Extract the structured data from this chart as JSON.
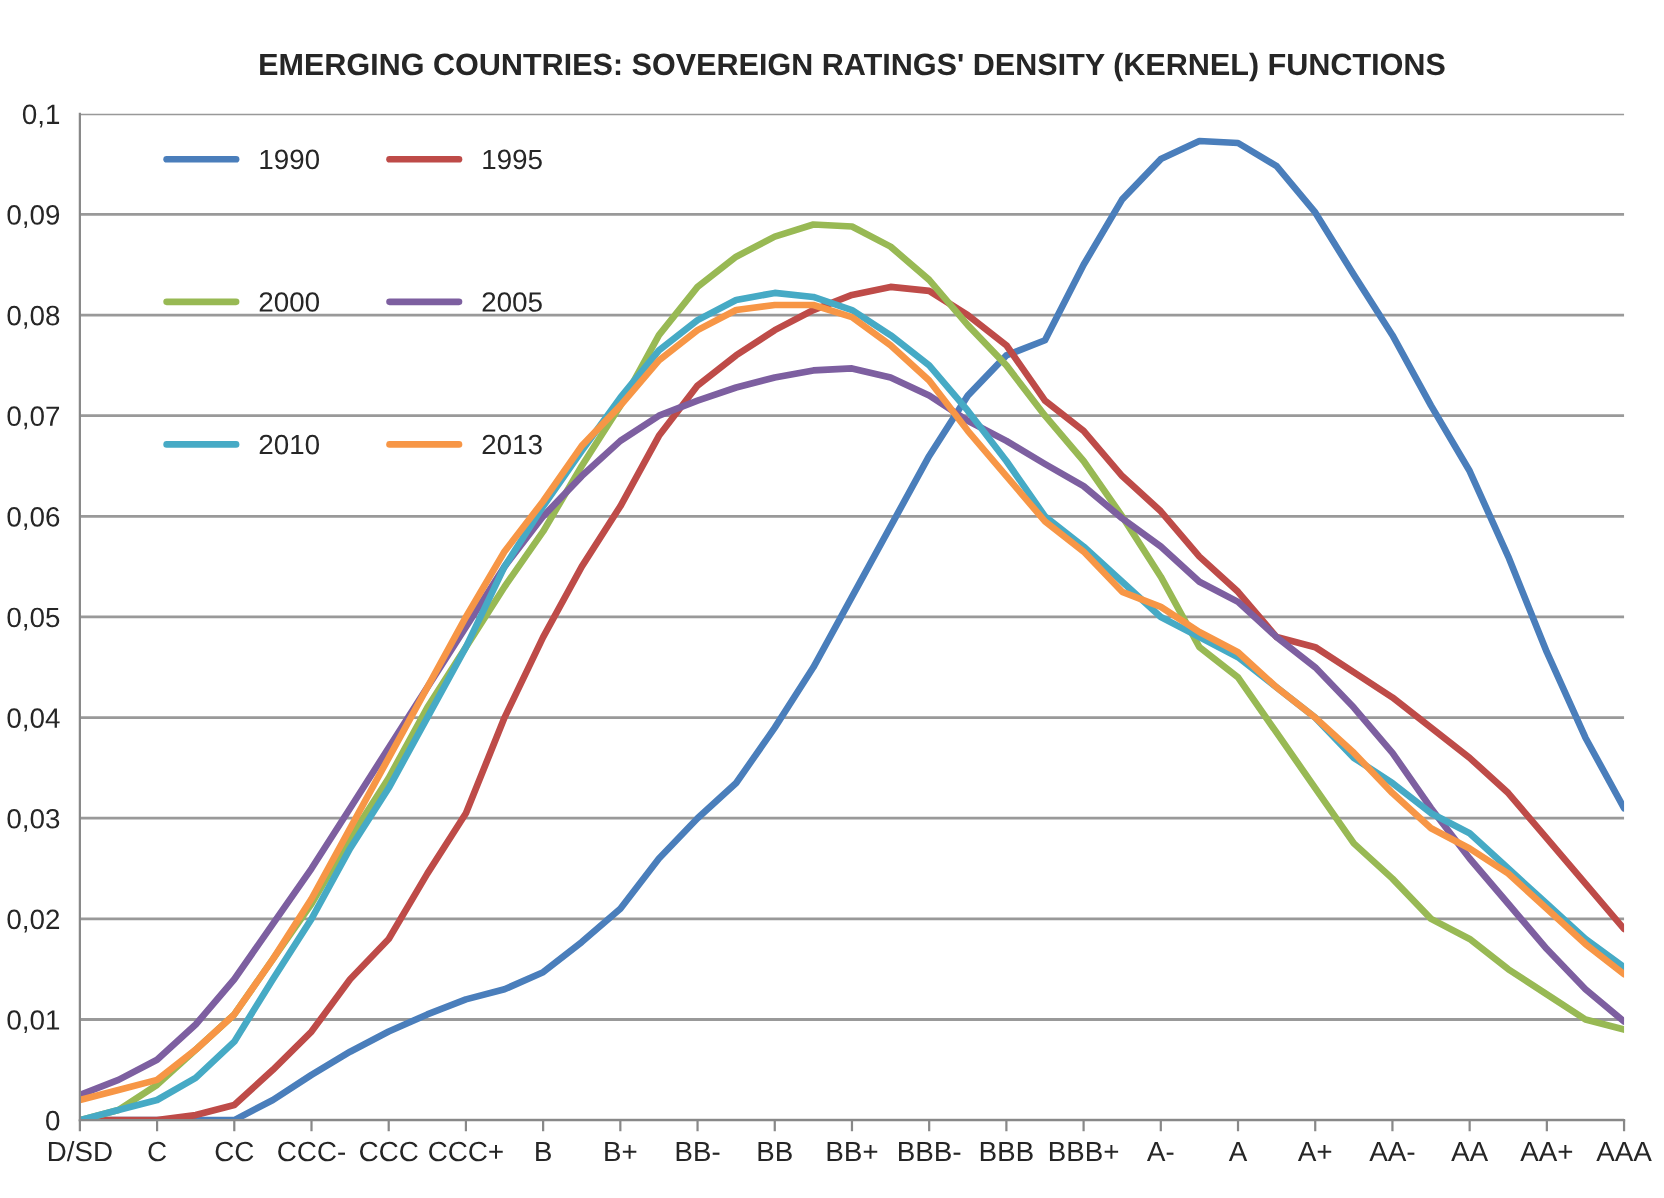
{
  "chart_data": {
    "type": "line",
    "title": "EMERGING COUNTRIES: SOVEREIGN RATINGS' DENSITY (KERNEL) FUNCTIONS",
    "categories": [
      "D/SD",
      null,
      "C",
      null,
      "CC",
      null,
      "CCC-",
      null,
      "CCC",
      null,
      "CCC+",
      null,
      "B",
      null,
      "B+",
      null,
      "BB-",
      null,
      "BB",
      null,
      "BB+",
      null,
      "BBB-",
      null,
      "BBB",
      null,
      "BBB+",
      null,
      "A-",
      null,
      "A",
      null,
      "A+",
      null,
      "AA-",
      null,
      "AA",
      null,
      "AA+",
      null,
      "AAA"
    ],
    "ylim": [
      0,
      0.1
    ],
    "yticks": [
      0,
      {
        "value": 0.01,
        "label": "0,01"
      },
      {
        "value": 0.02,
        "label": "0,02"
      },
      {
        "value": 0.03,
        "label": "0,03"
      },
      {
        "value": 0.04,
        "label": "0,04"
      },
      {
        "value": 0.05,
        "label": "0,05"
      },
      {
        "value": 0.06,
        "label": "0,06"
      },
      {
        "value": 0.07,
        "label": "0,07"
      },
      {
        "value": 0.08,
        "label": "0,08"
      },
      {
        "value": 0.09,
        "label": "0,09"
      },
      {
        "value": 0.1,
        "label": "0,1"
      }
    ],
    "grid": "y",
    "legend": "top left",
    "marker": "none",
    "line_style": "solid",
    "series": [
      {
        "name": "1990",
        "color": "#4a7ebb",
        "values": [
          0,
          0,
          0,
          0,
          0,
          0.002,
          0.0045,
          0.0068,
          0.0088,
          0.0105,
          0.012,
          0.013,
          0.0147,
          0.0177,
          0.021,
          0.026,
          0.03,
          0.0335,
          0.039,
          0.045,
          0.052,
          0.059,
          0.066,
          0.072,
          0.076,
          0.0775,
          0.085,
          0.0915,
          0.0955,
          0.0973,
          0.0971,
          0.0948,
          0.0902,
          0.084,
          0.078,
          0.071,
          0.0645,
          0.056,
          0.0465,
          0.038,
          0.031
        ]
      },
      {
        "name": "1995",
        "color": "#be4b48",
        "values": [
          0,
          0,
          0,
          0.0005,
          0.0015,
          0.005,
          0.0088,
          0.014,
          0.018,
          0.0245,
          0.0305,
          0.04,
          0.048,
          0.055,
          0.061,
          0.068,
          0.073,
          0.076,
          0.0785,
          0.0805,
          0.082,
          0.0828,
          0.0824,
          0.08,
          0.077,
          0.0715,
          0.0685,
          0.064,
          0.0605,
          0.056,
          0.0525,
          0.048,
          0.047,
          0.0445,
          0.042,
          0.039,
          0.036,
          0.0325,
          0.028,
          0.0235,
          0.019
        ]
      },
      {
        "name": "2000",
        "color": "#98b954",
        "values": [
          0,
          0.001,
          0.0035,
          0.007,
          0.0105,
          0.016,
          0.0215,
          0.028,
          0.034,
          0.041,
          0.047,
          0.053,
          0.0585,
          0.065,
          0.071,
          0.078,
          0.0828,
          0.0858,
          0.0878,
          0.089,
          0.0888,
          0.0868,
          0.0835,
          0.079,
          0.075,
          0.07,
          0.0655,
          0.06,
          0.054,
          0.047,
          0.044,
          0.0385,
          0.033,
          0.0275,
          0.024,
          0.02,
          0.018,
          0.015,
          0.0125,
          0.01,
          0.009
        ]
      },
      {
        "name": "2005",
        "color": "#7d5fa0",
        "values": [
          0.0025,
          0.004,
          0.006,
          0.0095,
          0.014,
          0.0195,
          0.025,
          0.031,
          0.037,
          0.043,
          0.049,
          0.055,
          0.06,
          0.064,
          0.0675,
          0.07,
          0.0715,
          0.0728,
          0.0738,
          0.0745,
          0.0747,
          0.0738,
          0.072,
          0.0695,
          0.0675,
          0.0652,
          0.063,
          0.0598,
          0.057,
          0.0535,
          0.0515,
          0.048,
          0.045,
          0.041,
          0.0365,
          0.031,
          0.026,
          0.0215,
          0.017,
          0.013,
          0.0098
        ]
      },
      {
        "name": "2010",
        "color": "#46aac5",
        "values": [
          0,
          0.001,
          0.002,
          0.0042,
          0.0078,
          0.014,
          0.02,
          0.027,
          0.033,
          0.04,
          0.047,
          0.055,
          0.061,
          0.0665,
          0.0718,
          0.0765,
          0.0795,
          0.0815,
          0.0822,
          0.0818,
          0.0805,
          0.078,
          0.075,
          0.0705,
          0.0655,
          0.06,
          0.057,
          0.0535,
          0.05,
          0.048,
          0.046,
          0.043,
          0.04,
          0.036,
          0.0335,
          0.0305,
          0.0285,
          0.025,
          0.0215,
          0.018,
          0.0152
        ]
      },
      {
        "name": "2013",
        "color": "#f79646",
        "values": [
          0.002,
          0.003,
          0.004,
          0.007,
          0.0105,
          0.016,
          0.022,
          0.029,
          0.036,
          0.043,
          0.05,
          0.0565,
          0.0615,
          0.067,
          0.071,
          0.0755,
          0.0785,
          0.0805,
          0.081,
          0.081,
          0.0798,
          0.077,
          0.0735,
          0.0685,
          0.064,
          0.0595,
          0.0565,
          0.0525,
          0.051,
          0.0485,
          0.0465,
          0.043,
          0.04,
          0.0365,
          0.0325,
          0.029,
          0.027,
          0.0245,
          0.021,
          0.0175,
          0.0145
        ]
      }
    ]
  }
}
